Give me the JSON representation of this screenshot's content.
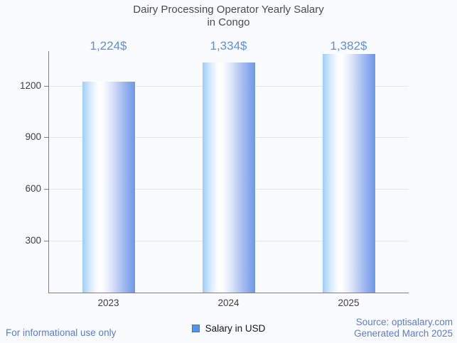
{
  "title": {
    "line1": "Dairy Processing Operator Yearly Salary",
    "line2": "in Congo"
  },
  "chart_data": {
    "type": "bar",
    "categories": [
      "2023",
      "2024",
      "2025"
    ],
    "values": [
      1224,
      1334,
      1382
    ],
    "value_labels": [
      "1,224$",
      "1,334$",
      "1,382$"
    ],
    "title": "Dairy Processing Operator Yearly Salary in Congo",
    "xlabel": "",
    "ylabel": "",
    "y_ticks": [
      300,
      600,
      900,
      1200
    ],
    "ylim": [
      0,
      1400
    ],
    "grid": true,
    "legend_position": "bottom",
    "series_name": "Salary in USD"
  },
  "legend": {
    "label": "Salary in USD"
  },
  "footer": {
    "left": "For informational use only",
    "source": "Source: optisalary.com",
    "generated": "Generated March 2025"
  },
  "colors": {
    "accent_blue": "#5e8ee4",
    "footer_blue": "#5a7bd8",
    "bar_gradient_left": "#a0cef7",
    "bar_gradient_mid": "#ffffff",
    "bar_gradient_right": "#6e96e8",
    "axis_gray": "#7f7f7f",
    "grid_gray": "#e5e6e9",
    "background": "#fafbfd"
  }
}
